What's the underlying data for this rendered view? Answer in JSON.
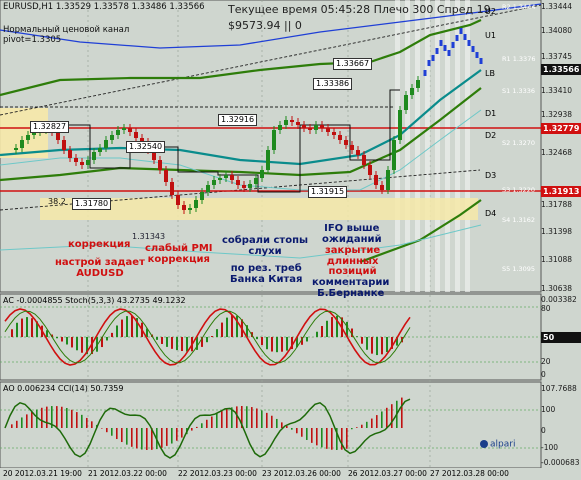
{
  "header": {
    "symbol": "EURUSD,H1  1.33529 1.33578 1.33486 1.33566",
    "indicator_name": "Нормальный ценовой канал",
    "pivot": "pivot=1.3305",
    "time_line": "Текущее время 05:45:28 Плечо 300 Спред 19",
    "equity_line": "$9573.94  || 0"
  },
  "levels": {
    "u2": "U2",
    "u1": "U1",
    "lb": "LB",
    "d1": "D1",
    "d2": "D2",
    "d3": "D3",
    "d4": "D4",
    "r1": "R1 1.3376",
    "r2": "R2 1.3444",
    "s1": "S1 1.3336",
    "s2": "S2 1.3270",
    "s3": "S3 1.3220",
    "s4": "S4 1.3162",
    "s5": "S5 1.3095"
  },
  "price_axis": [
    "1.33444",
    "1.34080",
    "1.33745",
    "1.33566",
    "1.33410",
    "1.32938",
    "1.32779",
    "1.32468",
    "1.31913",
    "1.31788",
    "1.31398",
    "1.31088",
    "1.30638"
  ],
  "price_tags": {
    "current": "1.33566",
    "red1": "1.32779",
    "red2": "1.31913"
  },
  "box_labels": [
    "1.33667",
    "1.33386",
    "1.32916",
    "1.32827",
    "1.32540",
    "1.31780",
    "1.31915",
    "1.31343",
    "38.2"
  ],
  "annotations": {
    "a1": "коррекция",
    "a2": "настрой задает\nAUDUSD",
    "a3": "слабый PMI\nкоррекция",
    "a4": "собрали стопы\nслухи",
    "a5": "по рез. треб\nБанка Китая",
    "a6": "IFO выше\nожиданий",
    "a7": "закрытие\nдлинных\nпозиций",
    "a8": "комментарии\nБ.Бернанке"
  },
  "ac_panel": {
    "title": "AC -0.0004855  Stoch(5,3,3) 43.2735 49.1232",
    "axis": [
      "0.003382",
      "80",
      "50",
      "20",
      "0"
    ],
    "tag": "50"
  },
  "ao_panel": {
    "title": "AO 0.006234  CCI(14) 50.7359",
    "axis": [
      "107.7688",
      "100",
      "0",
      "-100",
      "-0.000683"
    ]
  },
  "time_axis": [
    "20 2012.03.21 19:00",
    "21 2012.03.22 00:00",
    "22 2012.03.23 00:00",
    "23 2012.03.26 00:00",
    "26 2012.03.27 00:00",
    "27 2012.03.28 00:00"
  ],
  "watermark": "alpari",
  "colors": {
    "bg": "#cfd6cf",
    "channel": "#2e7d0a",
    "red": "#d01010",
    "teal": "#0a8c8c",
    "yellow": "#f6e9a8"
  }
}
